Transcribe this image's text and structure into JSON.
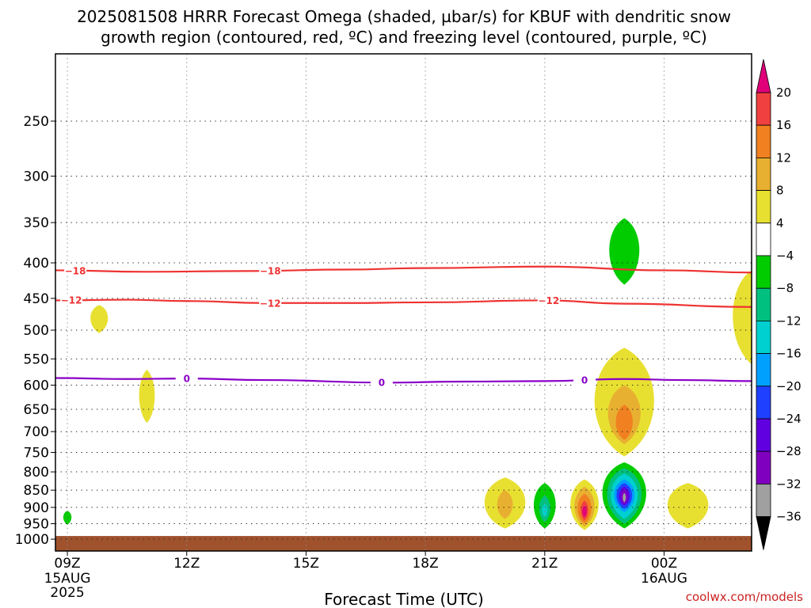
{
  "chart_data": {
    "type": "heatmap",
    "title_line1": "2025081508 HRRR Forecast Omega (shaded, µbar/s) for KBUF with dendritic snow",
    "title_line2": "growth region (contoured, red, ºC) and freezing level (contoured, purple, ºC)",
    "xlabel": "Forecast Time (UTC)",
    "credit": "coolwx.com/models",
    "x_range_hours": [
      8.7,
      26.2
    ],
    "x_ticks": [
      {
        "hour": 9,
        "label": "09Z",
        "sub1": "15AUG",
        "sub2": "2025"
      },
      {
        "hour": 12,
        "label": "12Z",
        "sub1": "",
        "sub2": ""
      },
      {
        "hour": 15,
        "label": "15Z",
        "sub1": "",
        "sub2": ""
      },
      {
        "hour": 18,
        "label": "18Z",
        "sub1": "",
        "sub2": ""
      },
      {
        "hour": 21,
        "label": "21Z",
        "sub1": "",
        "sub2": ""
      },
      {
        "hour": 24,
        "label": "00Z",
        "sub1": "16AUG",
        "sub2": ""
      }
    ],
    "y_scale": "log-pressure",
    "y_range_hPa": [
      1040,
      200
    ],
    "y_ticks": [
      250,
      300,
      350,
      400,
      450,
      500,
      550,
      600,
      650,
      700,
      750,
      800,
      850,
      900,
      950,
      1000
    ],
    "grid": true,
    "surface_pressure_hPa": 1000,
    "surface_color": "#a0522d",
    "colorbar": {
      "levels": [
        -36,
        -32,
        -28,
        -24,
        -20,
        -16,
        -12,
        -8,
        -4,
        4,
        8,
        12,
        16,
        20
      ],
      "colors": [
        "#000000",
        "#a0a0a0",
        "#8000c0",
        "#6000e0",
        "#2040ff",
        "#00a0ff",
        "#00d0d0",
        "#00c080",
        "#00cc00",
        "#ffffff",
        "#e8e030",
        "#e8b030",
        "#f08020",
        "#f04040",
        "#e0007a"
      ],
      "labels": [
        "20",
        "16",
        "12",
        "8",
        "4",
        "-4",
        "-8",
        "-12",
        "-16",
        "-20",
        "-24",
        "-28",
        "-32",
        "-36"
      ]
    },
    "contours": [
      {
        "name": "-18",
        "color": "#ee3333",
        "points": [
          [
            8.7,
            410
          ],
          [
            11,
            412
          ],
          [
            13.5,
            411
          ],
          [
            16,
            409
          ],
          [
            18,
            407
          ],
          [
            21,
            405
          ],
          [
            24,
            410
          ],
          [
            26.2,
            413
          ]
        ],
        "labels_at": [
          9.2,
          14.1
        ]
      },
      {
        "name": "-12",
        "color": "#ee3333",
        "points": [
          [
            8.7,
            453
          ],
          [
            10.5,
            452
          ],
          [
            12,
            454
          ],
          [
            14,
            457
          ],
          [
            16,
            457
          ],
          [
            18,
            456
          ],
          [
            21,
            453
          ],
          [
            23,
            458
          ],
          [
            26.2,
            463
          ]
        ],
        "labels_at": [
          9.1,
          14.1,
          21.1
        ]
      },
      {
        "name": "0",
        "color": "#8a00c8",
        "points": [
          [
            8.7,
            586
          ],
          [
            10.5,
            588
          ],
          [
            12,
            587
          ],
          [
            14,
            590
          ],
          [
            17,
            595
          ],
          [
            19,
            593
          ],
          [
            21,
            592
          ],
          [
            23,
            588
          ],
          [
            24.5,
            590
          ],
          [
            26.2,
            592
          ]
        ],
        "labels_at": [
          12.0,
          16.9,
          22.0
        ]
      }
    ],
    "blobs": [
      {
        "t": 9.0,
        "p": 930,
        "dt": 0.13,
        "top": 910,
        "bot": 953,
        "value": -5
      },
      {
        "t": 9.8,
        "p": 480,
        "dt": 0.28,
        "top": 460,
        "bot": 505,
        "value": 5
      },
      {
        "t": 11.0,
        "p": 625,
        "dt": 0.25,
        "top": 570,
        "bot": 680,
        "value": 5
      },
      {
        "t": 20.0,
        "p": 890,
        "dt": 0.65,
        "top": 815,
        "bot": 965,
        "value": 5
      },
      {
        "t": 20.0,
        "p": 895,
        "dt": 0.25,
        "top": 850,
        "bot": 935,
        "value": 9
      },
      {
        "t": 21.0,
        "p": 895,
        "dt": 0.35,
        "top": 830,
        "bot": 965,
        "value": -6
      },
      {
        "t": 21.0,
        "p": 905,
        "dt": 0.18,
        "top": 865,
        "bot": 945,
        "value": -10
      },
      {
        "t": 21.0,
        "p": 910,
        "dt": 0.08,
        "top": 890,
        "bot": 930,
        "value": -14
      },
      {
        "t": 22.0,
        "p": 895,
        "dt": 0.45,
        "top": 820,
        "bot": 970,
        "value": 5
      },
      {
        "t": 22.0,
        "p": 900,
        "dt": 0.32,
        "top": 840,
        "bot": 960,
        "value": 9
      },
      {
        "t": 22.0,
        "p": 905,
        "dt": 0.22,
        "top": 860,
        "bot": 950,
        "value": 13
      },
      {
        "t": 22.0,
        "p": 910,
        "dt": 0.12,
        "top": 880,
        "bot": 940,
        "value": 17
      },
      {
        "t": 22.0,
        "p": 912,
        "dt": 0.07,
        "top": 895,
        "bot": 930,
        "value": 21
      },
      {
        "t": 23.0,
        "p": 385,
        "dt": 0.48,
        "top": 345,
        "bot": 430,
        "value": -6
      },
      {
        "t": 23.0,
        "p": 640,
        "dt": 0.95,
        "top": 530,
        "bot": 760,
        "value": 5
      },
      {
        "t": 23.0,
        "p": 660,
        "dt": 0.52,
        "top": 600,
        "bot": 730,
        "value": 9
      },
      {
        "t": 23.0,
        "p": 680,
        "dt": 0.27,
        "top": 640,
        "bot": 720,
        "value": 13
      },
      {
        "t": 23.0,
        "p": 855,
        "dt": 0.7,
        "top": 775,
        "bot": 965,
        "value": -6
      },
      {
        "t": 23.0,
        "p": 860,
        "dt": 0.55,
        "top": 790,
        "bot": 950,
        "value": -10
      },
      {
        "t": 23.0,
        "p": 862,
        "dt": 0.43,
        "top": 805,
        "bot": 935,
        "value": -14
      },
      {
        "t": 23.0,
        "p": 864,
        "dt": 0.33,
        "top": 820,
        "bot": 915,
        "value": -18
      },
      {
        "t": 23.0,
        "p": 866,
        "dt": 0.25,
        "top": 830,
        "bot": 905,
        "value": -22
      },
      {
        "t": 23.0,
        "p": 868,
        "dt": 0.17,
        "top": 840,
        "bot": 895,
        "value": -26
      },
      {
        "t": 23.0,
        "p": 870,
        "dt": 0.1,
        "top": 848,
        "bot": 890,
        "value": -30
      },
      {
        "t": 23.0,
        "p": 872,
        "dt": 0.05,
        "top": 858,
        "bot": 885,
        "value": -34
      },
      {
        "t": 24.6,
        "p": 895,
        "dt": 0.65,
        "top": 830,
        "bot": 965,
        "value": 5
      },
      {
        "t": 26.2,
        "p": 480,
        "dt": 0.6,
        "top": 410,
        "bot": 560,
        "value": 5
      }
    ]
  }
}
